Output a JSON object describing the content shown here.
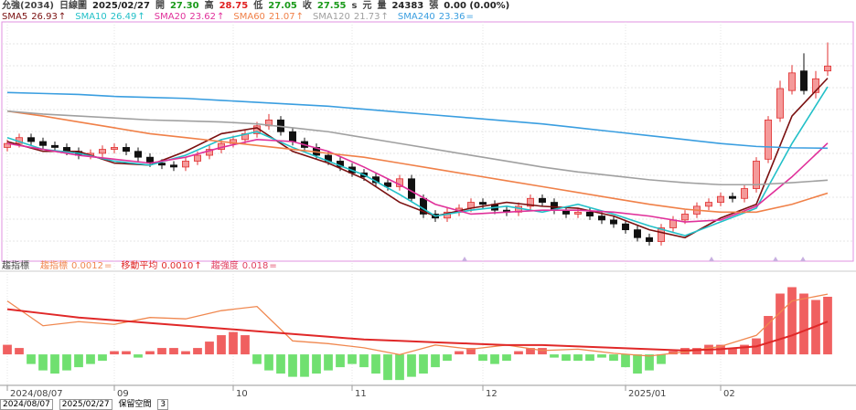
{
  "header": {
    "items": [
      {
        "text": "允強(2034)",
        "color": "#444444"
      },
      {
        "text": "日線圖",
        "color": "#444444"
      },
      {
        "text": "2025/02/27",
        "color": "#222222"
      },
      {
        "text": "開",
        "color": "#444444"
      },
      {
        "text": "27.30",
        "color": "#1a9a1a"
      },
      {
        "text": "高",
        "color": "#444444"
      },
      {
        "text": "28.75",
        "color": "#e02020"
      },
      {
        "text": "低",
        "color": "#444444"
      },
      {
        "text": "27.05",
        "color": "#1a9a1a"
      },
      {
        "text": "收",
        "color": "#444444"
      },
      {
        "text": "27.55",
        "color": "#1a9a1a"
      },
      {
        "text": "s",
        "color": "#444444"
      },
      {
        "text": "元",
        "color": "#444444"
      },
      {
        "text": "量",
        "color": "#444444"
      },
      {
        "text": "24383",
        "color": "#222222"
      },
      {
        "text": "張",
        "color": "#444444"
      },
      {
        "text": "0.00 (0.00%)",
        "color": "#222222"
      }
    ]
  },
  "chart_data": [
    {
      "type": "candlestick",
      "up_color": "#e03030",
      "down_color": "#111111",
      "ylim": [
        17.6,
        29.8
      ],
      "open": [
        23.4,
        23.6,
        23.9,
        23.7,
        23.5,
        23.4,
        23.2,
        23.0,
        23.1,
        23.3,
        23.4,
        23.2,
        22.9,
        22.6,
        22.5,
        22.4,
        22.7,
        23.0,
        23.3,
        23.6,
        23.8,
        24.1,
        24.5,
        24.8,
        24.2,
        23.7,
        23.4,
        23.0,
        22.7,
        22.4,
        22.1,
        21.9,
        21.6,
        21.4,
        21.8,
        20.8,
        20.0,
        19.8,
        20.1,
        20.3,
        20.6,
        20.5,
        20.2,
        20.1,
        20.4,
        20.8,
        20.6,
        20.2,
        20.0,
        20.1,
        19.9,
        19.7,
        19.5,
        19.2,
        18.8,
        18.6,
        19.3,
        19.7,
        20.0,
        20.4,
        20.6,
        20.9,
        20.8,
        21.3,
        22.8,
        24.9,
        26.3,
        27.3,
        26.2,
        27.3
      ],
      "high": [
        23.8,
        24.1,
        24.1,
        23.9,
        23.7,
        23.6,
        23.4,
        23.3,
        23.5,
        23.6,
        23.6,
        23.4,
        23.1,
        22.8,
        22.7,
        22.9,
        23.2,
        23.5,
        23.8,
        24.0,
        24.3,
        24.7,
        25.1,
        25.0,
        24.4,
        23.9,
        23.6,
        23.2,
        22.9,
        22.6,
        22.3,
        22.1,
        21.8,
        22.0,
        22.0,
        21.0,
        20.2,
        20.3,
        20.5,
        20.8,
        20.8,
        20.7,
        20.4,
        20.6,
        21.0,
        21.0,
        20.8,
        20.4,
        20.3,
        20.3,
        20.1,
        19.9,
        19.7,
        19.4,
        19.0,
        19.5,
        19.9,
        20.2,
        20.6,
        20.8,
        21.1,
        21.1,
        21.5,
        22.9,
        25.0,
        26.8,
        27.6,
        28.2,
        27.3,
        28.75
      ],
      "low": [
        23.2,
        23.4,
        23.5,
        23.3,
        23.2,
        23.0,
        22.8,
        22.8,
        22.9,
        23.1,
        23.0,
        22.7,
        22.4,
        22.3,
        22.2,
        22.2,
        22.5,
        22.8,
        23.1,
        23.4,
        23.6,
        23.9,
        24.3,
        24.0,
        23.5,
        23.2,
        22.8,
        22.5,
        22.2,
        21.9,
        21.7,
        21.4,
        21.2,
        21.2,
        20.6,
        19.8,
        19.6,
        19.6,
        19.9,
        20.1,
        20.3,
        20.0,
        19.9,
        19.9,
        20.2,
        20.4,
        20.0,
        19.8,
        19.8,
        19.7,
        19.5,
        19.3,
        19.0,
        18.6,
        18.4,
        18.4,
        19.1,
        19.5,
        19.8,
        20.2,
        20.4,
        20.6,
        20.6,
        21.1,
        22.6,
        24.7,
        26.1,
        26.1,
        25.9,
        27.05
      ],
      "close": [
        23.6,
        23.9,
        23.7,
        23.5,
        23.4,
        23.2,
        23.0,
        23.1,
        23.3,
        23.4,
        23.2,
        22.9,
        22.6,
        22.5,
        22.4,
        22.7,
        23.0,
        23.3,
        23.6,
        23.8,
        24.1,
        24.5,
        24.8,
        24.2,
        23.7,
        23.4,
        23.0,
        22.7,
        22.4,
        22.1,
        21.9,
        21.6,
        21.4,
        21.8,
        20.8,
        20.0,
        19.8,
        20.1,
        20.3,
        20.6,
        20.5,
        20.2,
        20.1,
        20.4,
        20.8,
        20.6,
        20.2,
        20.0,
        20.1,
        19.9,
        19.7,
        19.5,
        19.2,
        18.8,
        18.6,
        19.3,
        19.7,
        20.0,
        20.4,
        20.6,
        20.9,
        20.8,
        21.3,
        22.7,
        24.8,
        26.4,
        27.2,
        26.3,
        26.9,
        27.55
      ],
      "series": [
        {
          "name": "SMA5",
          "color": "#7a1010",
          "trend": "↑",
          "values": [
            23.7,
            23.2,
            23.2,
            22.6,
            22.5,
            23.2,
            24.1,
            24.4,
            23.2,
            22.6,
            21.8,
            20.6,
            19.9,
            20.3,
            20.6,
            20.4,
            20.3,
            19.9,
            19.2,
            18.8,
            19.8,
            20.5,
            25.0,
            26.93
          ]
        },
        {
          "name": "SMA10",
          "color": "#22c0c8",
          "trend": "↑",
          "values": [
            23.9,
            23.3,
            23.1,
            22.7,
            22.5,
            23.0,
            23.8,
            24.2,
            23.4,
            22.7,
            22.0,
            21.0,
            19.9,
            20.2,
            20.4,
            20.1,
            20.5,
            20.0,
            19.4,
            18.9,
            19.6,
            20.3,
            23.6,
            26.49
          ]
        },
        {
          "name": "SMA20",
          "color": "#e0309a",
          "trend": "↑",
          "values": [
            23.6,
            23.3,
            23.0,
            22.8,
            22.6,
            22.9,
            23.4,
            23.8,
            23.7,
            23.2,
            22.4,
            21.5,
            20.5,
            20.0,
            20.1,
            20.2,
            20.2,
            20.1,
            19.9,
            19.6,
            19.7,
            20.4,
            21.9,
            23.62
          ]
        },
        {
          "name": "SMA60",
          "color": "#f08048",
          "trend": "↑",
          "values": [
            25.25,
            25.0,
            24.7,
            24.4,
            24.1,
            23.9,
            23.7,
            23.5,
            23.3,
            23.1,
            22.9,
            22.6,
            22.3,
            22.0,
            21.7,
            21.4,
            21.1,
            20.8,
            20.5,
            20.25,
            20.1,
            20.1,
            20.5,
            21.07
          ]
        },
        {
          "name": "SMA120",
          "color": "#a0a0a0",
          "trend": "↑",
          "values": [
            25.25,
            25.1,
            25.0,
            24.9,
            24.8,
            24.75,
            24.7,
            24.6,
            24.4,
            24.2,
            23.9,
            23.6,
            23.3,
            23.0,
            22.7,
            22.4,
            22.15,
            21.95,
            21.75,
            21.6,
            21.5,
            21.5,
            21.6,
            21.73
          ]
        },
        {
          "name": "SMA240",
          "color": "#3a9ee0",
          "trend": "=",
          "values": [
            26.2,
            26.15,
            26.1,
            26.0,
            25.95,
            25.9,
            25.8,
            25.7,
            25.6,
            25.5,
            25.35,
            25.2,
            25.05,
            24.9,
            24.75,
            24.6,
            24.4,
            24.2,
            24.0,
            23.8,
            23.6,
            23.45,
            23.38,
            23.36
          ]
        }
      ],
      "x_labels": [
        {
          "value": 0,
          "label": "2024/08/07"
        },
        {
          "value": 9,
          "label": "09"
        },
        {
          "value": 19,
          "label": "10"
        },
        {
          "value": 29,
          "label": "11"
        },
        {
          "value": 40,
          "label": "12"
        },
        {
          "value": 52,
          "label": "2025/01"
        },
        {
          "value": 60,
          "label": "02"
        }
      ]
    },
    {
      "type": "oscillator",
      "title": "趨指標",
      "ylim": [
        -0.0091,
        0.0257
      ],
      "lines_ylim": [
        0.00055,
        0.00136
      ],
      "up_color": "#f06060",
      "down_color": "#70e070",
      "hist_name": "趨強度",
      "hist_color": "#e04060",
      "hist_trend": "=",
      "values": [
        0.003,
        0.002,
        -0.003,
        -0.005,
        -0.006,
        -0.005,
        -0.004,
        -0.003,
        -0.002,
        0.001,
        0.001,
        -0.001,
        0.001,
        0.002,
        0.002,
        0.001,
        0.002,
        0.004,
        0.006,
        0.007,
        0.006,
        -0.003,
        -0.005,
        -0.006,
        -0.007,
        -0.007,
        -0.006,
        -0.005,
        -0.004,
        -0.003,
        -0.004,
        -0.006,
        -0.008,
        -0.008,
        -0.007,
        -0.006,
        -0.004,
        -0.002,
        0.001,
        0.002,
        -0.002,
        -0.003,
        -0.002,
        0.001,
        0.002,
        0.002,
        -0.001,
        -0.002,
        -0.002,
        -0.002,
        -0.001,
        -0.002,
        -0.004,
        -0.006,
        -0.005,
        -0.003,
        0.001,
        0.002,
        0.002,
        0.003,
        0.003,
        0.002,
        0.003,
        0.005,
        0.012,
        0.019,
        0.021,
        0.019,
        0.017,
        0.018
      ],
      "series": [
        {
          "name": "趨指標",
          "color": "#f08850",
          "trend": "=",
          "values": [
            0.00115,
            0.00097,
            0.001,
            0.00098,
            0.00103,
            0.00102,
            0.00108,
            0.00111,
            0.00086,
            0.00084,
            0.00081,
            0.00076,
            0.00083,
            0.0008,
            0.00083,
            0.00079,
            0.0008,
            0.00077,
            0.00075,
            0.00078,
            0.00082,
            0.0009,
            0.00115,
            0.0012
          ]
        },
        {
          "name": "移動平均",
          "color": "#e02828",
          "trend": "↑",
          "value_label": "0.0010",
          "values": [
            0.00109,
            0.00106,
            0.00103,
            0.00101,
            0.00099,
            0.00097,
            0.00095,
            0.00093,
            0.00091,
            0.00089,
            0.00087,
            0.00086,
            0.00085,
            0.00084,
            0.00083,
            0.00083,
            0.00082,
            0.00081,
            0.0008,
            0.00079,
            0.0008,
            0.00082,
            0.0009,
            0.001
          ]
        }
      ]
    }
  ],
  "controls": {
    "start": "2024/08/07",
    "end": "2025/02/27",
    "keep_label": "保留空間",
    "keep_value": "3"
  }
}
